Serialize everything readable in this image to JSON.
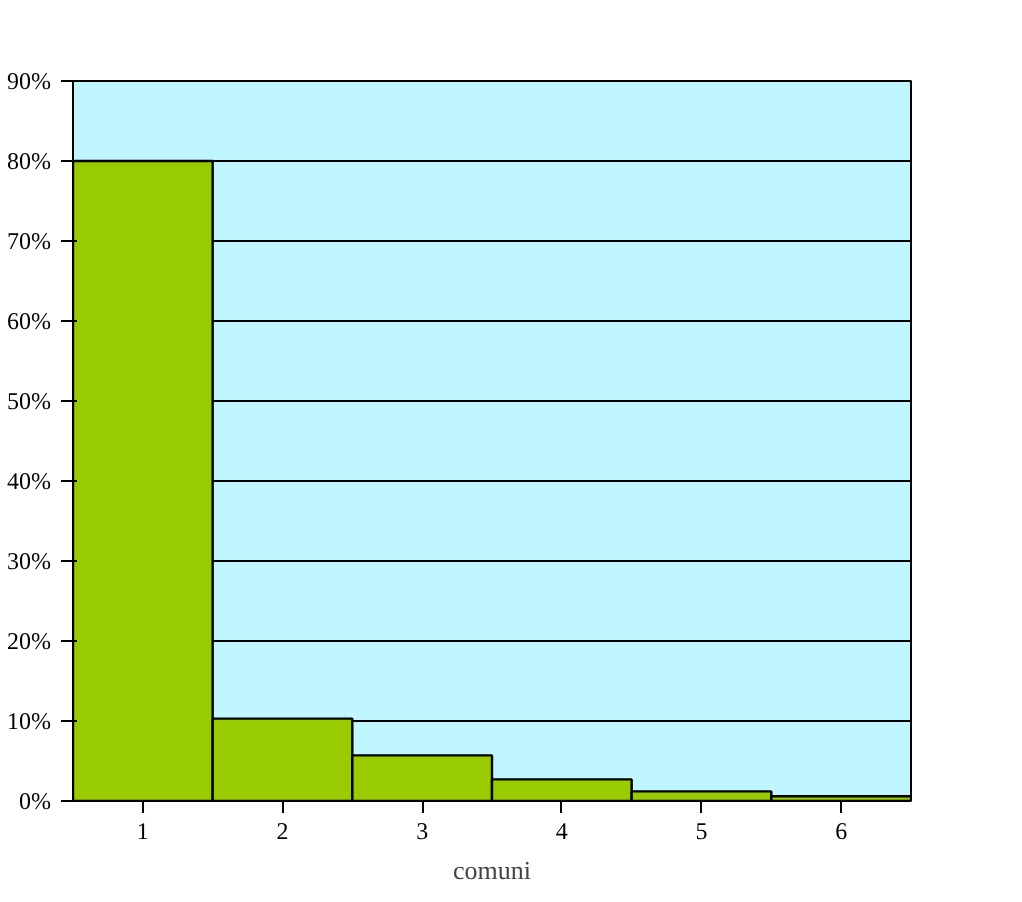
{
  "chart_data": {
    "type": "bar",
    "xlabel": "comuni",
    "categories": [
      "1",
      "2",
      "3",
      "4",
      "5",
      "6"
    ],
    "values": [
      80,
      10.3,
      5.7,
      2.7,
      1.2,
      0.6
    ],
    "color": "#99cc00",
    "ylim": [
      0,
      90
    ],
    "yticks": [
      {
        "value": 0,
        "label": "0%"
      },
      {
        "value": 10,
        "label": "10%"
      },
      {
        "value": 20,
        "label": "20%"
      },
      {
        "value": 30,
        "label": "30%"
      },
      {
        "value": 40,
        "label": "40%"
      },
      {
        "value": 50,
        "label": "50%"
      },
      {
        "value": 60,
        "label": "60%"
      },
      {
        "value": 70,
        "label": "70%"
      },
      {
        "value": 80,
        "label": "80%"
      },
      {
        "value": 90,
        "label": "90%"
      }
    ],
    "grid": "y"
  }
}
